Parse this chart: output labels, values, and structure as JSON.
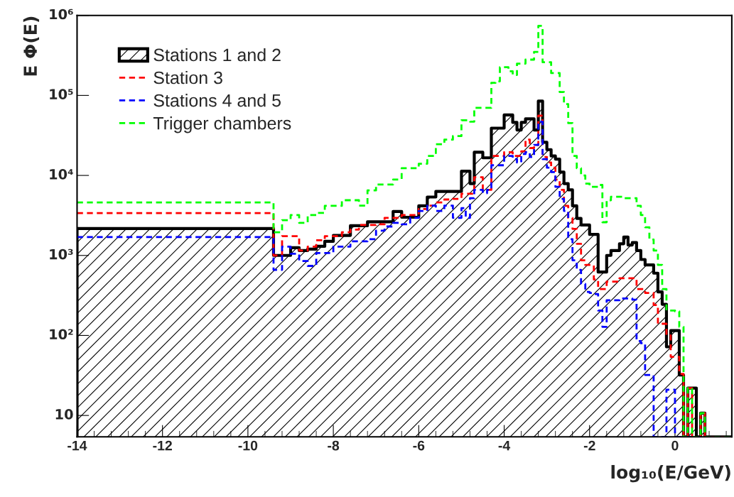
{
  "chart_data": {
    "type": "histogram",
    "xlabel": "log₁₀(E/GeV)",
    "ylabel": "E Φ(E)",
    "bins": [
      -14,
      -9.4,
      -9.2,
      -9.0,
      -8.8,
      -8.6,
      -8.4,
      -8.2,
      -8.0,
      -7.8,
      -7.6,
      -7.4,
      -7.2,
      -7.0,
      -6.8,
      -6.6,
      -6.4,
      -6.2,
      -6.0,
      -5.8,
      -5.6,
      -5.4,
      -5.2,
      -5.0,
      -4.9,
      -4.8,
      -4.7,
      -4.6,
      -4.5,
      -4.4,
      -4.3,
      -4.2,
      -4.1,
      -4.0,
      -3.9,
      -3.8,
      -3.7,
      -3.6,
      -3.5,
      -3.4,
      -3.3,
      -3.2,
      -3.1,
      -3.0,
      -2.9,
      -2.8,
      -2.7,
      -2.6,
      -2.5,
      -2.4,
      -2.3,
      -2.2,
      -2.1,
      -2.0,
      -1.9,
      -1.8,
      -1.7,
      -1.6,
      -1.5,
      -1.4,
      -1.3,
      -1.2,
      -1.1,
      -1.0,
      -0.9,
      -0.8,
      -0.7,
      -0.6,
      -0.5,
      -0.4,
      -0.3,
      -0.2,
      -0.1,
      0.0,
      0.1,
      0.2,
      0.3,
      0.4,
      0.5,
      0.6,
      0.7,
      0.8,
      0.9,
      1.0,
      1.1,
      1.2,
      1.33
    ],
    "series": [
      {
        "name": "Stations 1 and 2",
        "color": "#000000",
        "line_style": "solid",
        "values": [
          2170,
          1000,
          1000,
          1250,
          1150,
          1200,
          1300,
          1500,
          1780,
          1780,
          2350,
          2350,
          2630,
          2630,
          2630,
          3540,
          3000,
          3000,
          4170,
          5370,
          6300,
          6300,
          6300,
          11300,
          11300,
          7900,
          19500,
          19500,
          16600,
          16600,
          39000,
          39000,
          39000,
          57000,
          57000,
          46000,
          37000,
          46000,
          51000,
          51000,
          37000,
          85000,
          26000,
          21000,
          17500,
          16000,
          11000,
          7900,
          6600,
          4170,
          2900,
          2400,
          2400,
          1830,
          1830,
          620,
          620,
          1000,
          1150,
          1150,
          1400,
          1700,
          1350,
          1450,
          1150,
          890,
          760,
          760,
          600,
          350,
          245,
          72,
          115,
          115,
          32,
          null,
          22,
          22,
          null,
          10.7,
          null,
          null,
          null,
          null,
          null,
          null
        ]
      },
      {
        "name": "Station 3",
        "color": "#ff0000",
        "line_style": "dashed",
        "values": [
          3390,
          1000,
          1740,
          1740,
          1150,
          1290,
          1550,
          1740,
          1740,
          1950,
          2100,
          2400,
          2400,
          2450,
          2950,
          2950,
          3200,
          3200,
          3800,
          4200,
          4600,
          5000,
          5100,
          5900,
          5900,
          5900,
          9500,
          9500,
          6600,
          6600,
          17500,
          17500,
          17500,
          19500,
          19500,
          17500,
          17500,
          20000,
          28000,
          22000,
          24000,
          56000,
          17000,
          14500,
          12500,
          8900,
          6600,
          4170,
          2950,
          2150,
          1400,
          870,
          760,
          760,
          500,
          380,
          380,
          470,
          470,
          470,
          520,
          520,
          520,
          520,
          380,
          380,
          340,
          340,
          240,
          140,
          140,
          100,
          54,
          54,
          33,
          null,
          22,
          null,
          null,
          10.7,
          null,
          null,
          null,
          null,
          null,
          null
        ]
      },
      {
        "name": "Stations 4 and 5",
        "color": "#0000ff",
        "line_style": "dashed",
        "values": [
          1700,
          660,
          1290,
          1050,
          850,
          740,
          1070,
          1070,
          1290,
          1290,
          1500,
          1500,
          1600,
          2040,
          2300,
          2550,
          2450,
          2950,
          3600,
          4200,
          3600,
          4200,
          2950,
          3900,
          2950,
          5200,
          6600,
          6600,
          6000,
          6600,
          13400,
          13400,
          13400,
          17500,
          17500,
          16000,
          14500,
          18500,
          19500,
          17000,
          24000,
          47000,
          16000,
          12500,
          11000,
          7200,
          5100,
          3600,
          1600,
          870,
          660,
          440,
          350,
          340,
          330,
          205,
          128,
          275,
          275,
          275,
          290,
          290,
          290,
          280,
          85,
          80,
          32,
          32,
          null,
          null,
          null,
          21,
          21,
          null,
          null,
          null,
          null,
          null,
          null,
          null,
          null,
          null,
          null,
          null,
          null,
          null
        ]
      },
      {
        "name": "Trigger chambers",
        "color": "#00ff00",
        "line_style": "dashed",
        "values": [
          4600,
          1950,
          2760,
          3200,
          2550,
          3200,
          3400,
          4170,
          4170,
          4900,
          4900,
          4200,
          6500,
          7700,
          7700,
          8900,
          12300,
          12300,
          14000,
          17500,
          24500,
          28000,
          31000,
          49000,
          49000,
          47000,
          70000,
          70000,
          70000,
          70000,
          144000,
          150000,
          225000,
          225000,
          200000,
          180000,
          250000,
          250000,
          280000,
          280000,
          350000,
          740000,
          260000,
          260000,
          190000,
          190000,
          110000,
          78000,
          45000,
          17500,
          12300,
          10000,
          7900,
          7200,
          7200,
          7600,
          2600,
          4900,
          5400,
          5400,
          5400,
          5200,
          5200,
          5200,
          4170,
          3200,
          2250,
          1580,
          1150,
          760,
          380,
          205,
          205,
          200,
          128,
          null,
          22,
          null,
          null,
          10.7,
          null,
          null,
          null,
          null,
          null,
          null
        ]
      }
    ],
    "log": "y",
    "xlim": [
      -14,
      1.33
    ],
    "ylim": [
      5.4,
      1000000
    ],
    "xticks": [
      -14,
      -12,
      -10,
      -8,
      -6,
      -4,
      -2,
      0
    ],
    "yticks": [
      10,
      {
        "value": 100,
        "label": "10²"
      },
      {
        "value": 1000,
        "label": "10³"
      },
      {
        "value": 10000,
        "label": "10⁴"
      },
      {
        "value": 100000,
        "label": "10⁵"
      },
      {
        "value": 1000000,
        "label": "10⁶"
      }
    ],
    "grid": false,
    "legend": "top left"
  }
}
